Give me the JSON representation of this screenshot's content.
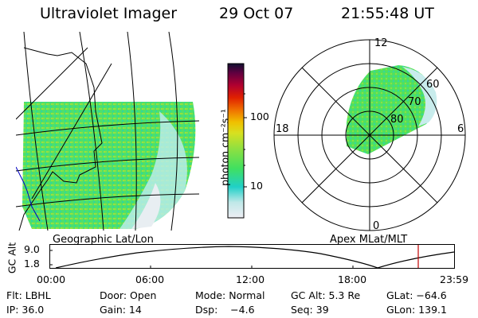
{
  "header": {
    "instrument": "Ultraviolet Imager",
    "date": "29 Oct 07",
    "time": "21:55:48 UT"
  },
  "colorbar": {
    "unit_label": "photon cm⁻²s⁻¹",
    "tick_100": "100",
    "tick_10": "10",
    "colors": [
      "#e8e8f0",
      "#c0e8e8",
      "#20d0c8",
      "#40e060",
      "#80e040",
      "#c8e020",
      "#f0e000",
      "#f0b000",
      "#f07000",
      "#e02000",
      "#c00020",
      "#900030",
      "#600040",
      "#201040"
    ]
  },
  "map_left": {
    "caption": "Geographic Lat/Lon"
  },
  "map_right": {
    "caption": "Apex MLat/MLT",
    "mlt_labels": {
      "top": "12",
      "bottom": "0",
      "left": "18",
      "right": "6"
    },
    "lat_labels": [
      "60",
      "70",
      "80"
    ]
  },
  "altitude_plot": {
    "ylabel": "GC Alt",
    "yticks": [
      "9.0",
      "1.8"
    ],
    "xticks": [
      "00:00",
      "06:00",
      "12:00",
      "18:00",
      "23:59"
    ],
    "marker_color": "#c00000"
  },
  "status": {
    "row1": {
      "flt": "Flt: LBHL",
      "door": "Door: Open",
      "mode": "Mode: Normal",
      "gcalt": "GC Alt: 5.3 Re",
      "glat": "GLat: −64.6"
    },
    "row2": {
      "ip": "IP: 36.0",
      "gain": "Gain: 14",
      "dsp": "Dsp:    −4.6",
      "seq": "Seq: 39",
      "glon": "GLon: 139.1"
    }
  }
}
